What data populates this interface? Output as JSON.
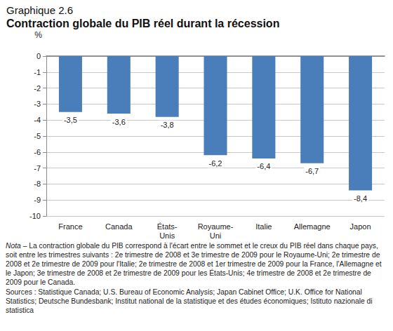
{
  "chart_data": {
    "type": "bar",
    "title": "Graphique 2.6",
    "subtitle": "Contraction globale du PIB réel durant la récession",
    "ylabel": "%",
    "categories": [
      "France",
      "Canada",
      "États-Unis",
      "Royaume-Uni",
      "Italie",
      "Allemagne",
      "Japon"
    ],
    "values": [
      -3.5,
      -3.6,
      -3.8,
      -6.2,
      -6.4,
      -6.7,
      -8.4
    ],
    "value_labels": [
      "-3,5",
      "-3,6",
      "-3,8",
      "-6,2",
      "-6,4",
      "-6,7",
      "-8,4"
    ],
    "data_labels": true,
    "color": "#4a7ebb",
    "ylim": [
      -10,
      0
    ],
    "yticks": [
      -10,
      -9,
      -8,
      -7,
      -6,
      -5,
      -4,
      -3,
      -2,
      -1,
      0
    ],
    "grid": true,
    "annotations": {
      "note": "Nota – La contraction globale du PIB correspond à l'écart entre le sommet et le creux du PIB réel dans chaque pays, soit entre les trimestres suivants : 2e trimestre de 2008 et 3e trimestre de 2009 pour le Royaume-Uni; 2e trimestre de 2008 et 2e trimestre de 2009 pour l'Italie; 2e trimestre de 2008 et 1er trimestre de 2009 pour la France, l'Allemagne et le Japon; 3e trimestre de 2008 et 2e trimestre de 2009 pour les États-Unis; 4e trimestre de 2008 et 2e trimestre de 2009 pour le Canada.",
      "sources": "Sources : Statistique Canada; U.S. Bureau of Economic Analysis; Japan Cabinet Office; U.K. Office for National Statistics; Deutsche Bundesbank; Institut national de la statistique et des études économiques; Istituto nazionale di statistica"
    }
  }
}
